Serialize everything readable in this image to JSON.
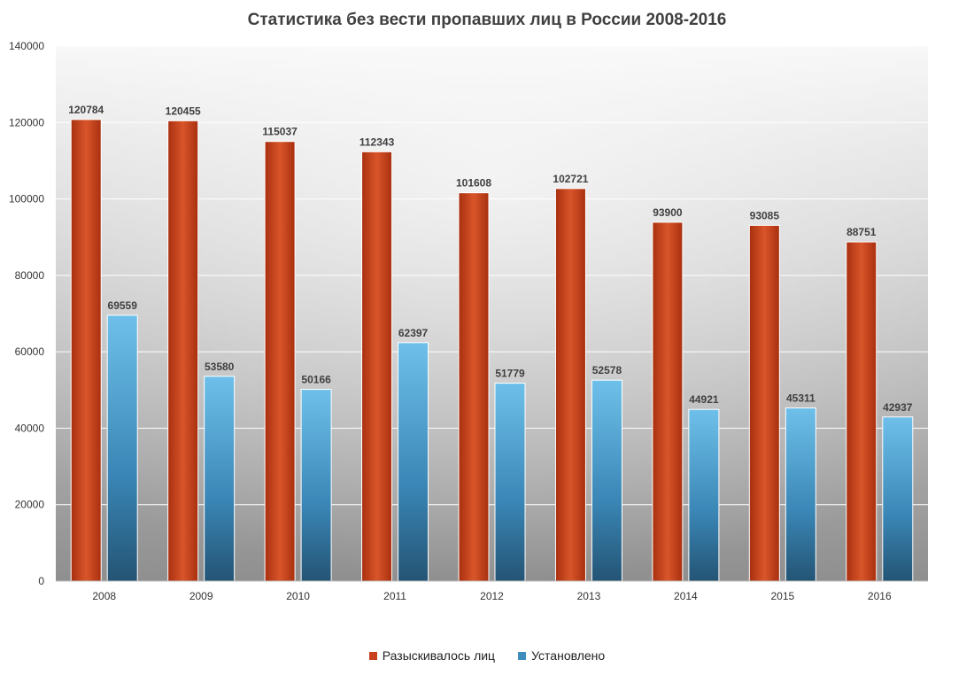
{
  "chart_data": {
    "type": "bar",
    "title": "Статистика  без вести  пропавших  лиц в России 2008-2016",
    "categories": [
      "2008",
      "2009",
      "2010",
      "2011",
      "2012",
      "2013",
      "2014",
      "2015",
      "2016"
    ],
    "series": [
      {
        "name": "Разыскивалось лиц",
        "color": "#c8401c",
        "values": [
          120784,
          120455,
          115037,
          112343,
          101608,
          102721,
          93900,
          93085,
          88751
        ]
      },
      {
        "name": "Установлено",
        "color": "#3f8cbf",
        "values": [
          69559,
          53580,
          50166,
          62397,
          51779,
          52578,
          44921,
          45311,
          42937
        ]
      }
    ],
    "ylim": [
      0,
      140000
    ],
    "yticks": [
      0,
      20000,
      40000,
      60000,
      80000,
      100000,
      120000,
      140000
    ],
    "grid": true,
    "legend_position": "bottom",
    "xlabel": "",
    "ylabel": ""
  }
}
